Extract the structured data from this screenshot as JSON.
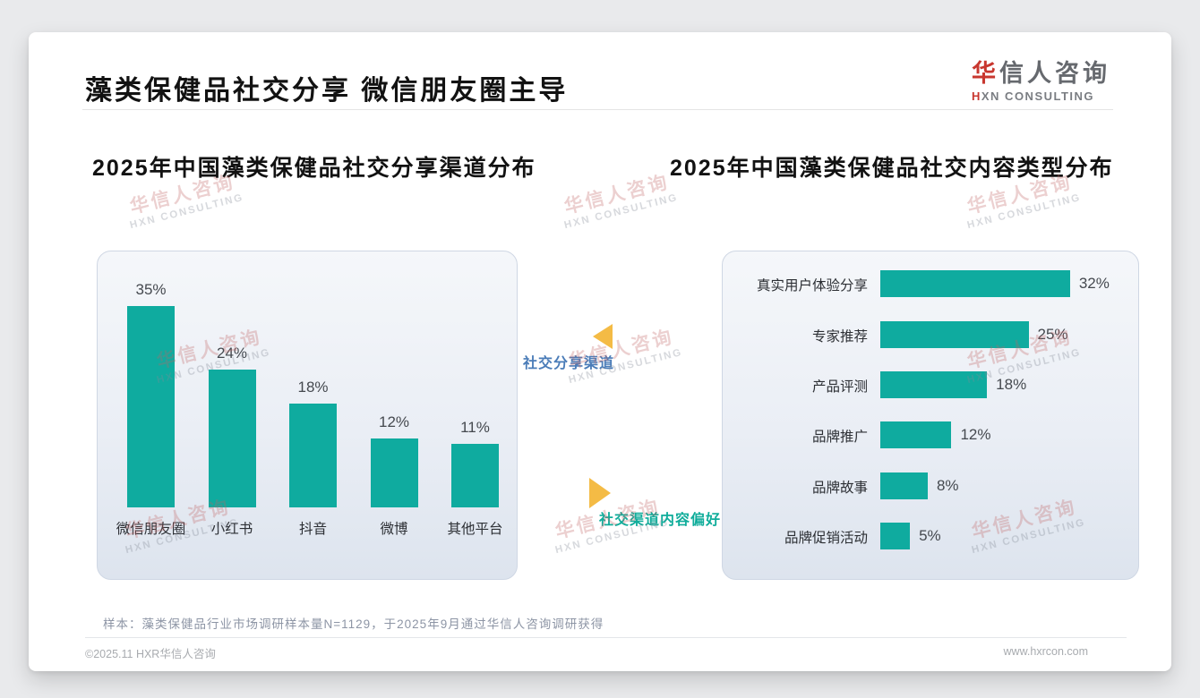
{
  "header": {
    "title": "藻类保健品社交分享 微信朋友圈主导",
    "logo": {
      "cn_first": "华",
      "cn_rest": "信人咨询",
      "en_first": "H",
      "en_rest": "XN CONSULTING"
    }
  },
  "watermark": {
    "line1": "华信人咨询",
    "line2": "HXN CONSULTING"
  },
  "annotations": {
    "left": {
      "label": "社交分享渠道",
      "color": "#4a7cb8"
    },
    "right": {
      "label": "社交渠道内容偏好",
      "color": "#10ad9b"
    }
  },
  "colors": {
    "bar": "#0fab9f",
    "triangle": "#f4bb45",
    "accent_red": "#c8372f"
  },
  "chart_data": [
    {
      "type": "bar",
      "orientation": "vertical",
      "title": "2025年中国藻类保健品社交分享渠道分布",
      "categories": [
        "微信朋友圈",
        "小红书",
        "抖音",
        "微博",
        "其他平台"
      ],
      "values": [
        35,
        24,
        18,
        12,
        11
      ],
      "unit": "%",
      "ylim": [
        0,
        40
      ],
      "grid": false,
      "value_labels": [
        "35%",
        "24%",
        "18%",
        "12%",
        "11%"
      ]
    },
    {
      "type": "bar",
      "orientation": "horizontal",
      "title": "2025年中国藻类保健品社交内容类型分布",
      "categories": [
        "真实用户体验分享",
        "专家推荐",
        "产品评测",
        "品牌推广",
        "品牌故事",
        "品牌促销活动"
      ],
      "values": [
        32,
        25,
        18,
        12,
        8,
        5
      ],
      "unit": "%",
      "xlim": [
        0,
        35
      ],
      "grid": false,
      "value_labels": [
        "32%",
        "25%",
        "18%",
        "12%",
        "8%",
        "5%"
      ]
    }
  ],
  "footnote": "样本：藻类保健品行业市场调研样本量N=1129，于2025年9月通过华信人咨询调研获得",
  "footer": {
    "left": "©2025.11 HXR华信人咨询",
    "right": "www.hxrcon.com"
  }
}
